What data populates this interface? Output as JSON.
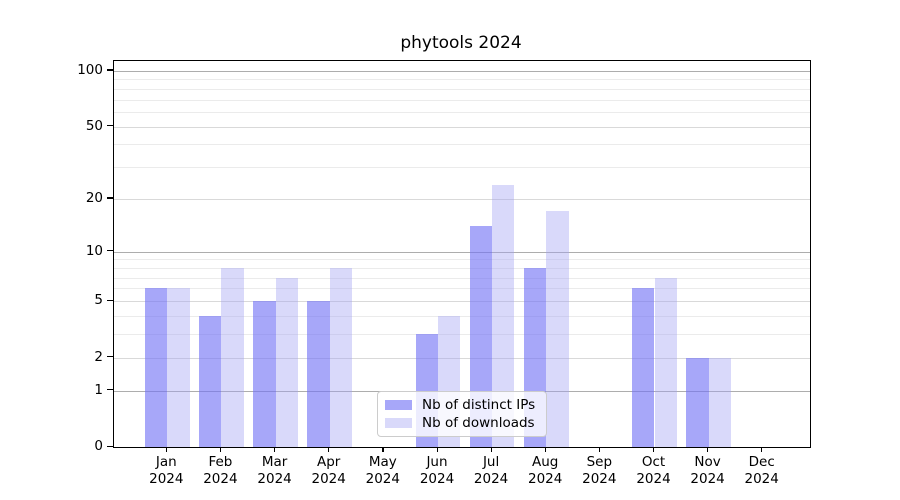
{
  "chart_data": {
    "type": "bar",
    "title": "phytools 2024",
    "categories": [
      "Jan 2024",
      "Feb 2024",
      "Mar 2024",
      "Apr 2024",
      "May 2024",
      "Jun 2024",
      "Jul 2024",
      "Aug 2024",
      "Sep 2024",
      "Oct 2024",
      "Nov 2024",
      "Dec 2024"
    ],
    "series": [
      {
        "name": "Nb of distinct IPs",
        "color": "rgba(113,113,245,0.62)",
        "values": [
          6,
          4,
          5,
          5,
          0,
          3,
          14,
          8,
          0,
          6,
          2,
          0
        ]
      },
      {
        "name": "Nb of downloads",
        "color": "rgba(160,160,242,0.40)",
        "values": [
          6,
          8,
          7,
          8,
          0,
          4,
          24,
          17,
          0,
          7,
          2,
          0
        ]
      }
    ],
    "y_axis": {
      "scale": "log1p",
      "tick_labels": [
        100,
        50,
        20,
        10,
        5,
        2,
        1,
        0
      ],
      "minor_gridlines": [
        3,
        4,
        6,
        7,
        8,
        9,
        30,
        40,
        60,
        70,
        80,
        90
      ],
      "mid_gridlines": [
        2,
        5,
        20,
        50
      ],
      "major_gridlines": [
        1,
        10,
        100
      ],
      "ylim": [
        0,
        113
      ],
      "grid": true
    },
    "legend": {
      "position": "lower center"
    }
  }
}
